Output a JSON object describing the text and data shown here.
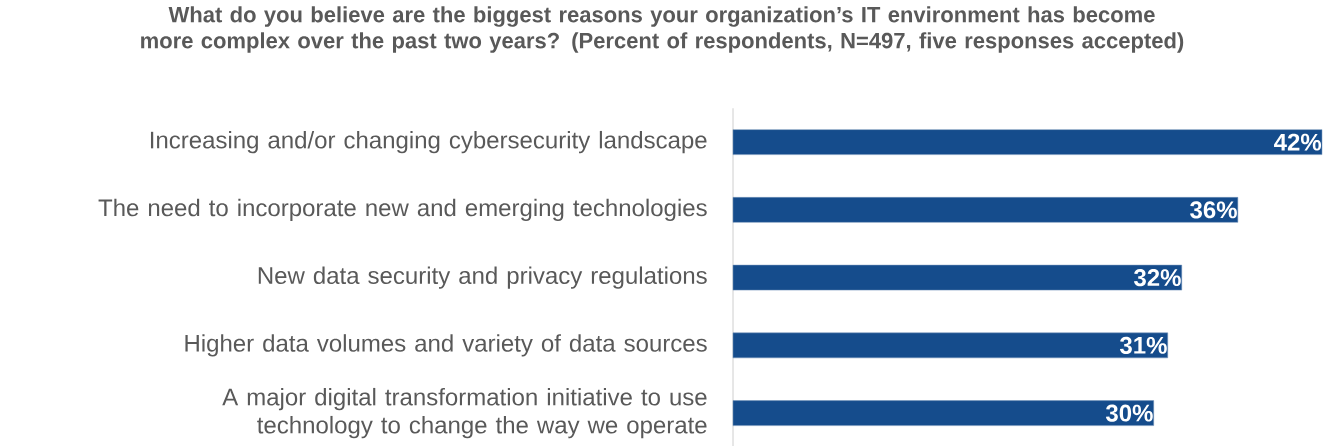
{
  "chart_data": {
    "type": "bar",
    "orientation": "horizontal",
    "title": "What do you believe are the biggest reasons your organization’s IT environment has become more complex over the past two years? (Percent of respondents, N=497, five responses accepted)",
    "categories": [
      "Increasing and/or changing cybersecurity landscape",
      "The need to incorporate new and emerging technologies",
      "New data security and privacy regulations",
      "Higher data volumes and variety of data sources",
      "A major digital transformation initiative to use technology to change the way we operate"
    ],
    "values": [
      42,
      36,
      32,
      31,
      30
    ],
    "value_labels": [
      "42%",
      "36%",
      "32%",
      "31%",
      "30%"
    ],
    "color": "#154c8c"
  }
}
